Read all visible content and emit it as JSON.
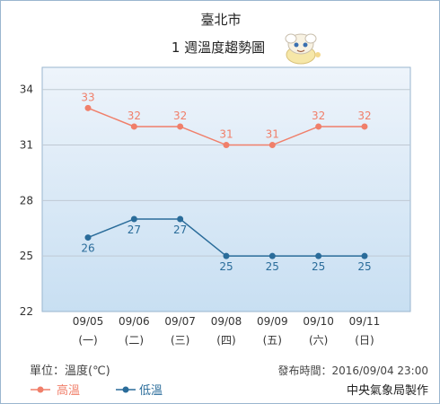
{
  "chart_data": {
    "type": "line",
    "title": "臺北市",
    "subtitle": "1 週溫度趨勢圖",
    "categories": [
      "09/05",
      "09/06",
      "09/07",
      "09/08",
      "09/09",
      "09/10",
      "09/11"
    ],
    "weekdays": [
      "(一)",
      "(二)",
      "(三)",
      "(四)",
      "(五)",
      "(六)",
      "(日)"
    ],
    "series": [
      {
        "name": "高溫",
        "values": [
          33,
          32,
          32,
          31,
          31,
          32,
          32
        ],
        "color": "#f07f6a"
      },
      {
        "name": "低溫",
        "values": [
          26,
          27,
          27,
          25,
          25,
          25,
          25
        ],
        "color": "#2a6c9a"
      }
    ],
    "yticks": [
      22,
      25,
      28,
      31,
      34
    ],
    "ylim": [
      22,
      35.2
    ],
    "grid": true,
    "legend_position": "bottom-left"
  },
  "footer": {
    "unit": "單位：溫度(℃)",
    "publish": "發布時間：2016/09/04 23:00",
    "agency": "中央氣象局製作"
  },
  "colors": {
    "plot_top": "#eef4fb",
    "plot_bottom": "#c8dff2",
    "grid": "#bfc9d3",
    "axis_text": "#333333",
    "high": "#f07f6a",
    "low": "#2a6c9a"
  }
}
